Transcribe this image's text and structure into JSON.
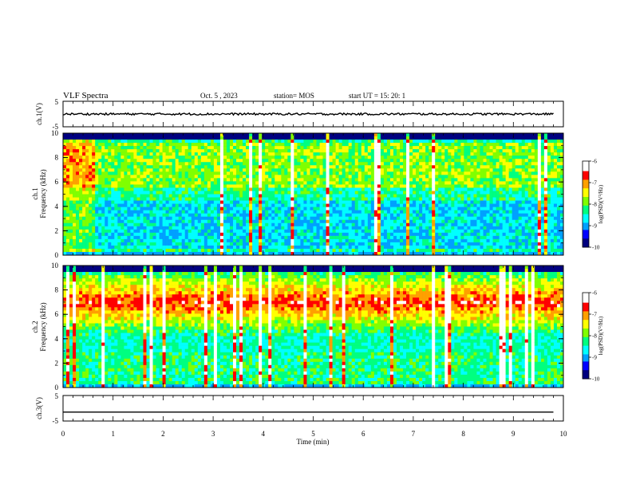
{
  "header": {
    "title": "VLF Spectra",
    "date": "Oct. 5 , 2023",
    "station": "station= MOS",
    "start": "start UT =  15: 20: 1"
  },
  "chart_data": {
    "type": "heatmap",
    "xlabel": "Time (min)",
    "xlim": [
      0,
      10
    ],
    "x_ticks": [
      "0",
      "1",
      "2",
      "3",
      "4",
      "5",
      "6",
      "7",
      "8",
      "9",
      "10"
    ],
    "panels": [
      {
        "id": "ch1-voltage",
        "ylabel": "ch.1(V)",
        "ylim": [
          -5,
          5
        ],
        "y_ticks": [
          "5",
          "-5"
        ],
        "trace_level": 0
      },
      {
        "id": "ch1-spectrogram",
        "ylabel": "Frequency (kHz)",
        "channel_label": "ch.1",
        "ylim": [
          0,
          10
        ],
        "y_ticks": [
          "0",
          "2",
          "4",
          "6",
          "8",
          "10"
        ],
        "colorbar": {
          "label": "log(PSD)(V²/Hz)",
          "range": [
            -10,
            -6
          ],
          "ticks": [
            "-6",
            "-7",
            "-8",
            "-9",
            "-10"
          ]
        }
      },
      {
        "id": "ch2-spectrogram",
        "ylabel": "Frequency (kHz)",
        "channel_label": "ch.2",
        "ylim": [
          0,
          10
        ],
        "y_ticks": [
          "0",
          "2",
          "4",
          "6",
          "8",
          "10"
        ],
        "colorbar": {
          "label": "log(PSD)(V²/Hz)",
          "range": [
            -10,
            -6
          ],
          "ticks": [
            "-6",
            "-7",
            "-8",
            "-9",
            "-10"
          ]
        }
      },
      {
        "id": "ch3-voltage",
        "ylabel": "ch.3(V)",
        "ylim": [
          -5,
          5
        ],
        "y_ticks": [
          "5",
          "-5"
        ],
        "trace_level": -1.5
      }
    ],
    "colormap": [
      "#000080",
      "#0000ff",
      "#00a0ff",
      "#00ffff",
      "#00ff80",
      "#80ff00",
      "#ffff00",
      "#ffa000",
      "#ff0000",
      "#ffffff"
    ]
  }
}
